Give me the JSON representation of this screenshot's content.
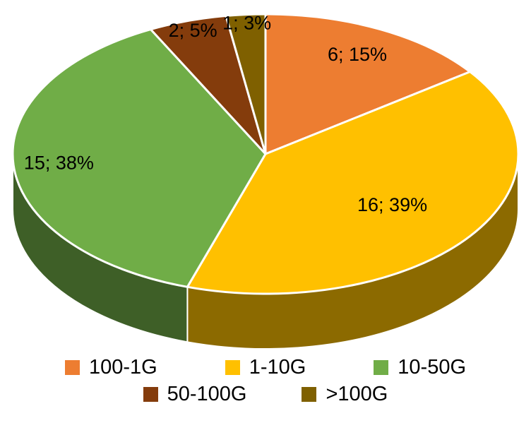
{
  "chart_data": {
    "type": "pie",
    "style": "3d",
    "title": "",
    "categories": [
      "100-1G",
      "1-10G",
      "10-50G",
      "50-100G",
      ">100G"
    ],
    "values": [
      6,
      16,
      15,
      2,
      1
    ],
    "percentages": [
      15,
      39,
      38,
      5,
      3
    ],
    "labels": [
      "6; 15%",
      "16; 39%",
      "15; 38%",
      "2; 5%",
      "1; 3%"
    ],
    "colors": [
      "#ED7D31",
      "#FFC000",
      "#70AD47",
      "#843C0C",
      "#7F6000"
    ],
    "legend_position": "bottom",
    "start_angle_deg": 0,
    "direction": "clockwise",
    "background": "#FFFFFF",
    "slice_border_color": "#FFFFFF"
  }
}
